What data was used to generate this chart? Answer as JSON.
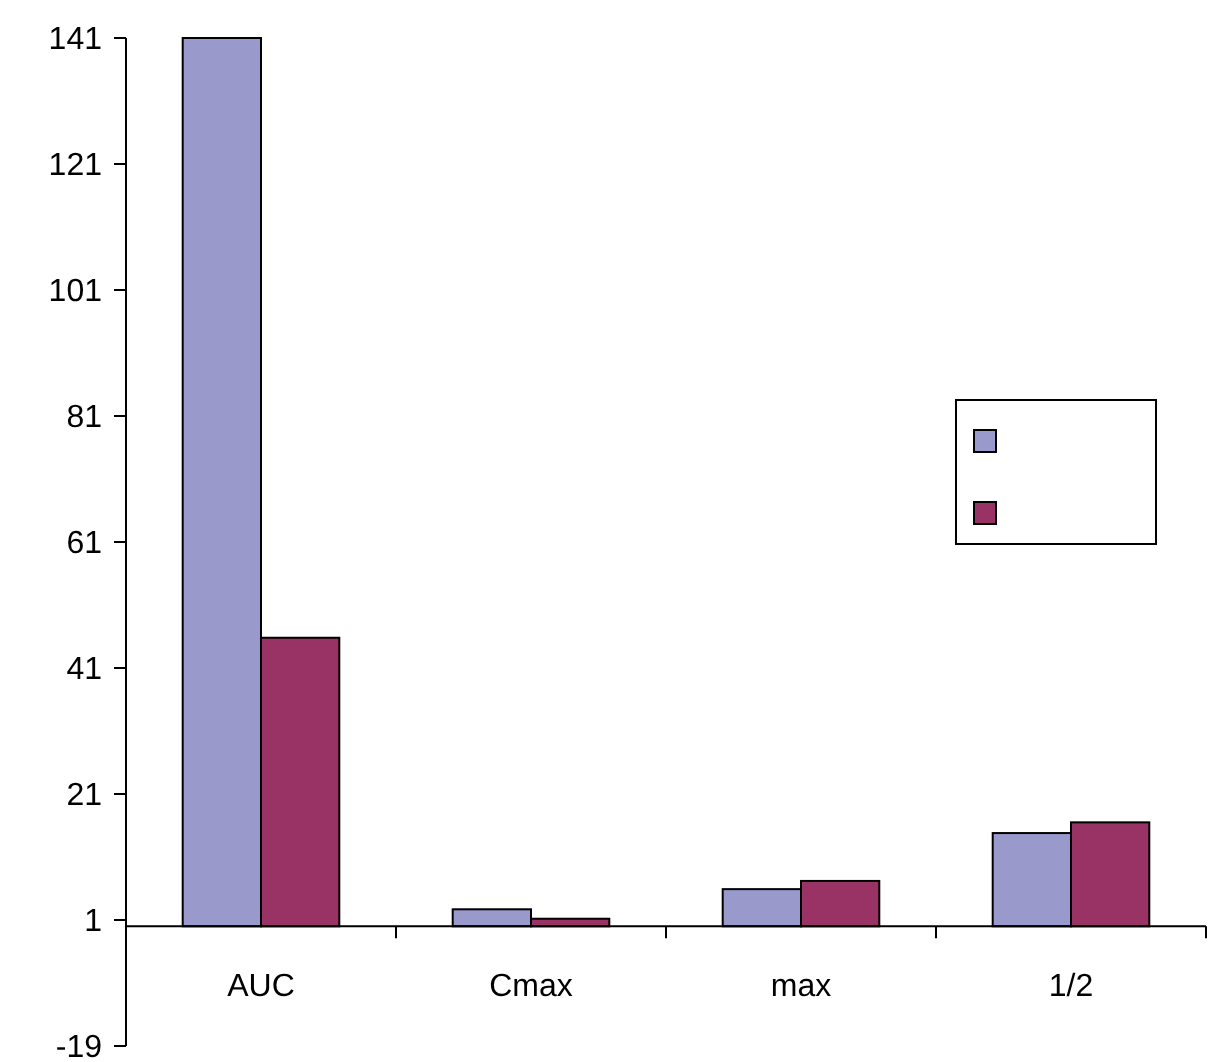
{
  "chart_data": {
    "type": "bar",
    "categories": [
      "AUC",
      "Cmax",
      "max",
      "1/2"
    ],
    "series": [
      {
        "color": "#9999cc",
        "values": [
          141,
          2.7,
          5.9,
          14.8
        ]
      },
      {
        "color": "#993366",
        "values": [
          45.8,
          1.2,
          7.2,
          16.5
        ]
      }
    ],
    "ylim": [
      -19,
      141
    ],
    "yticks": [
      -19,
      1,
      21,
      41,
      61,
      81,
      101,
      121,
      141
    ],
    "grid": false
  }
}
